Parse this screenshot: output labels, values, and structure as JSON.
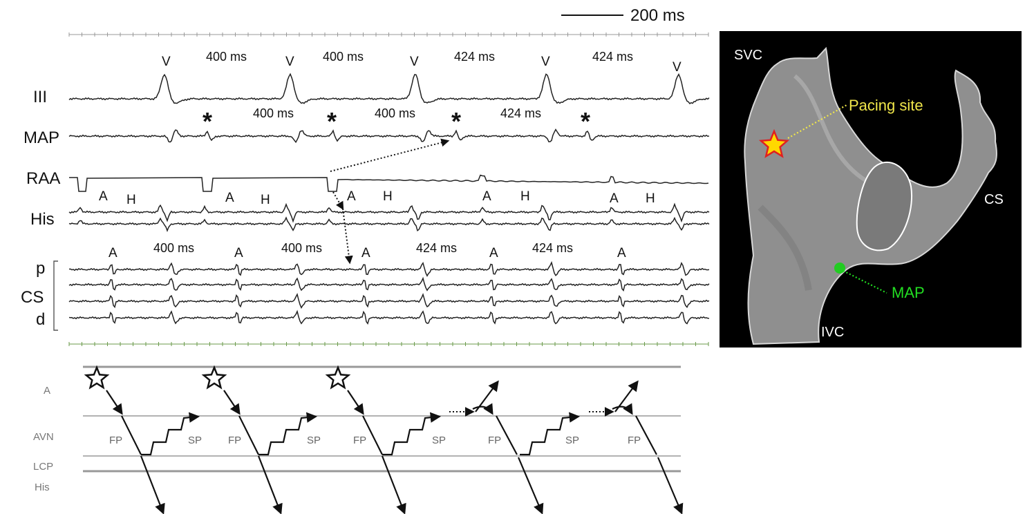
{
  "scale_bar": "200 ms",
  "wave_label": "V",
  "star_label": "*",
  "atrial_label": "A",
  "his_label": "H",
  "channels": [
    "III",
    "MAP",
    "RAA",
    "His",
    "p",
    "CS",
    "d"
  ],
  "intervals_v": [
    "400 ms",
    "400 ms",
    "424 ms",
    "424 ms"
  ],
  "intervals_map": [
    "400 ms",
    "400 ms",
    "424 ms"
  ],
  "intervals_cs": [
    "400 ms",
    "400 ms",
    "424 ms",
    "424 ms"
  ],
  "ladder": {
    "rows": [
      "A",
      "AVN",
      "LCP",
      "His"
    ],
    "fp": "FP",
    "sp": "SP"
  },
  "anatomy": {
    "svc": "SVC",
    "ivc": "IVC",
    "cs": "CS",
    "pacing_site": "Pacing site",
    "map": "MAP"
  },
  "colors": {
    "pacing": "#f0e64a",
    "map": "#22dd22",
    "star_fill": "#ffd700",
    "star_stroke": "#e02020"
  }
}
